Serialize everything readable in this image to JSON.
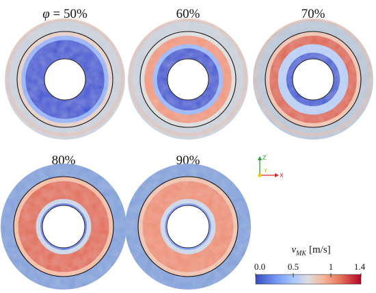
{
  "figure": {
    "panels": [
      {
        "phi_symbol": "φ",
        "eq": " = 50%",
        "label": "50%",
        "bright": 0.08,
        "bright_at_inner_ring": 0.55,
        "note": ""
      },
      {
        "phi_symbol": "",
        "eq": "",
        "label": "60%",
        "bright": 0.55
      },
      {
        "phi_symbol": "",
        "eq": "",
        "label": "70%",
        "bright": 0.82
      },
      {
        "phi_symbol": "",
        "eq": "",
        "label": "80%",
        "bright": 0.92
      },
      {
        "phi_symbol": "",
        "eq": "",
        "label": "90%",
        "bright": 0.8
      }
    ],
    "axes_triad": {
      "z": "Z",
      "y": "Y",
      "x": "X"
    },
    "colorbar": {
      "symbol": "v",
      "subscript": "MK",
      "unit": "[m/s]",
      "ticks": [
        "0.0",
        "0.5",
        "1",
        "1.4"
      ],
      "min": 0.0,
      "max": 1.4,
      "colors": {
        "low": "#3b4cc0",
        "mid": "#dddddd",
        "high": "#b40426"
      }
    }
  }
}
